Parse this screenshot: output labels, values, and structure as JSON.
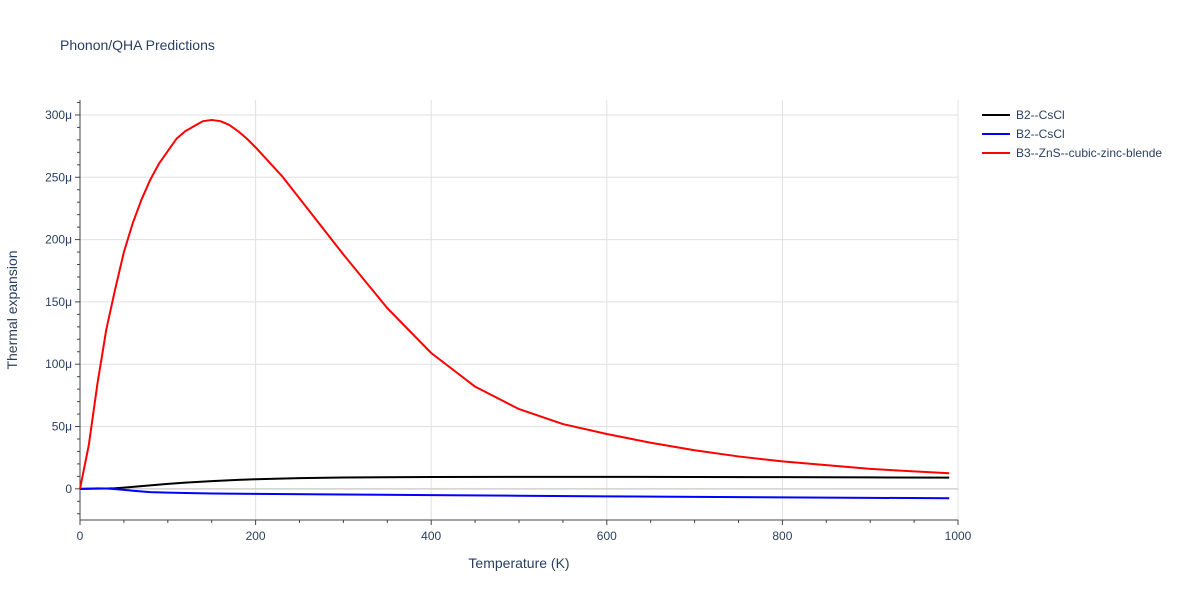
{
  "chart_data": {
    "type": "line",
    "title": "Phonon/QHA Predictions",
    "xlabel": "Temperature (K)",
    "ylabel": "Thermal expansion",
    "xlim": [
      0,
      1000
    ],
    "ylim": [
      -25,
      312
    ],
    "x_ticks": [
      0,
      200,
      400,
      600,
      800,
      1000
    ],
    "x_tick_labels": [
      "0",
      "200",
      "400",
      "600",
      "800",
      "1000"
    ],
    "y_ticks": [
      0,
      50,
      100,
      150,
      200,
      250,
      300
    ],
    "y_tick_labels": [
      "0",
      "50μ",
      "100μ",
      "150μ",
      "200μ",
      "250μ",
      "300μ"
    ],
    "y_unit_note": "values in units of 1e-6 (μ)",
    "grid": true,
    "legend_position": "top-right",
    "series": [
      {
        "name": "B2--CsCl",
        "color": "#000000",
        "x": [
          0,
          10,
          20,
          30,
          40,
          50,
          60,
          80,
          100,
          120,
          150,
          180,
          200,
          250,
          300,
          400,
          500,
          600,
          700,
          800,
          900,
          990
        ],
        "y": [
          0,
          0.1,
          0.2,
          0.3,
          0.5,
          1.0,
          1.6,
          2.8,
          4.0,
          5.0,
          6.2,
          7.2,
          7.7,
          8.6,
          9.1,
          9.5,
          9.6,
          9.6,
          9.5,
          9.4,
          9.2,
          9.0
        ]
      },
      {
        "name": "B2--CsCl",
        "color": "#0000ff",
        "x": [
          0,
          10,
          20,
          30,
          40,
          50,
          60,
          80,
          100,
          120,
          150,
          200,
          300,
          400,
          500,
          600,
          700,
          800,
          900,
          990
        ],
        "y": [
          0,
          0.2,
          0.4,
          0.3,
          -0.2,
          -0.8,
          -1.5,
          -2.6,
          -3.0,
          -3.3,
          -3.7,
          -4.0,
          -4.5,
          -5.0,
          -5.5,
          -6.0,
          -6.4,
          -6.8,
          -7.2,
          -7.6
        ]
      },
      {
        "name": "B3--ZnS--cubic-zinc-blende",
        "color": "#ff0000",
        "x": [
          0,
          10,
          20,
          30,
          40,
          50,
          60,
          70,
          80,
          90,
          100,
          110,
          120,
          130,
          140,
          150,
          160,
          170,
          180,
          190,
          200,
          230,
          260,
          300,
          350,
          400,
          450,
          500,
          550,
          600,
          650,
          700,
          750,
          800,
          850,
          900,
          950,
          990
        ],
        "y": [
          0,
          35,
          85,
          128,
          160,
          190,
          213,
          232,
          248,
          261,
          271,
          281,
          287,
          291,
          295,
          296,
          295,
          292,
          287,
          281,
          274,
          251,
          224,
          188,
          145,
          109,
          82,
          64,
          52,
          44,
          37,
          31,
          26,
          22,
          19,
          16,
          14,
          12.5
        ]
      }
    ]
  }
}
